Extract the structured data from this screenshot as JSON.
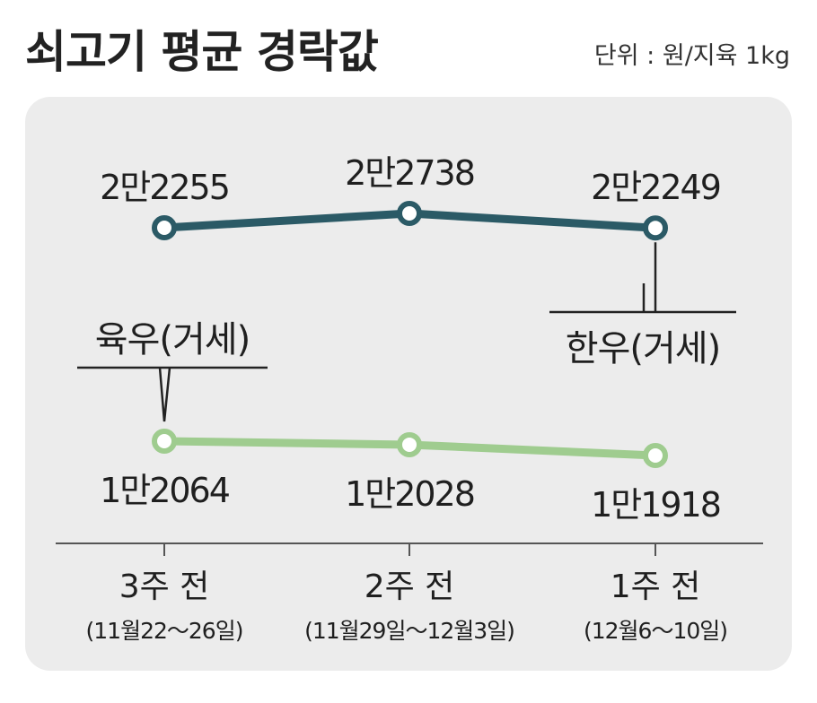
{
  "header": {
    "title": "쇠고기 평균 경락값",
    "unit": "단위 : 원/지육 1kg"
  },
  "chart_data": {
    "type": "line",
    "title": "쇠고기 평균 경락값",
    "unit": "단위 : 원/지육 1kg",
    "categories": [
      "3주 전",
      "2주 전",
      "1주 전"
    ],
    "category_dates": [
      "(11월22～26일)",
      "(11월29일～12월3일)",
      "(12월6～10일)"
    ],
    "ylim": [
      10000,
      24000
    ],
    "grid": false,
    "series": [
      {
        "name": "한우(거세)",
        "color": "#2b5a66",
        "values": [
          22255,
          22738,
          22249
        ],
        "value_labels": [
          "2만2255",
          "2만2738",
          "2만2249"
        ]
      },
      {
        "name": "육우(거세)",
        "color": "#9fcc8f",
        "values": [
          12064,
          12028,
          11918
        ],
        "value_labels": [
          "1만2064",
          "1만2028",
          "1만1918"
        ]
      }
    ]
  }
}
